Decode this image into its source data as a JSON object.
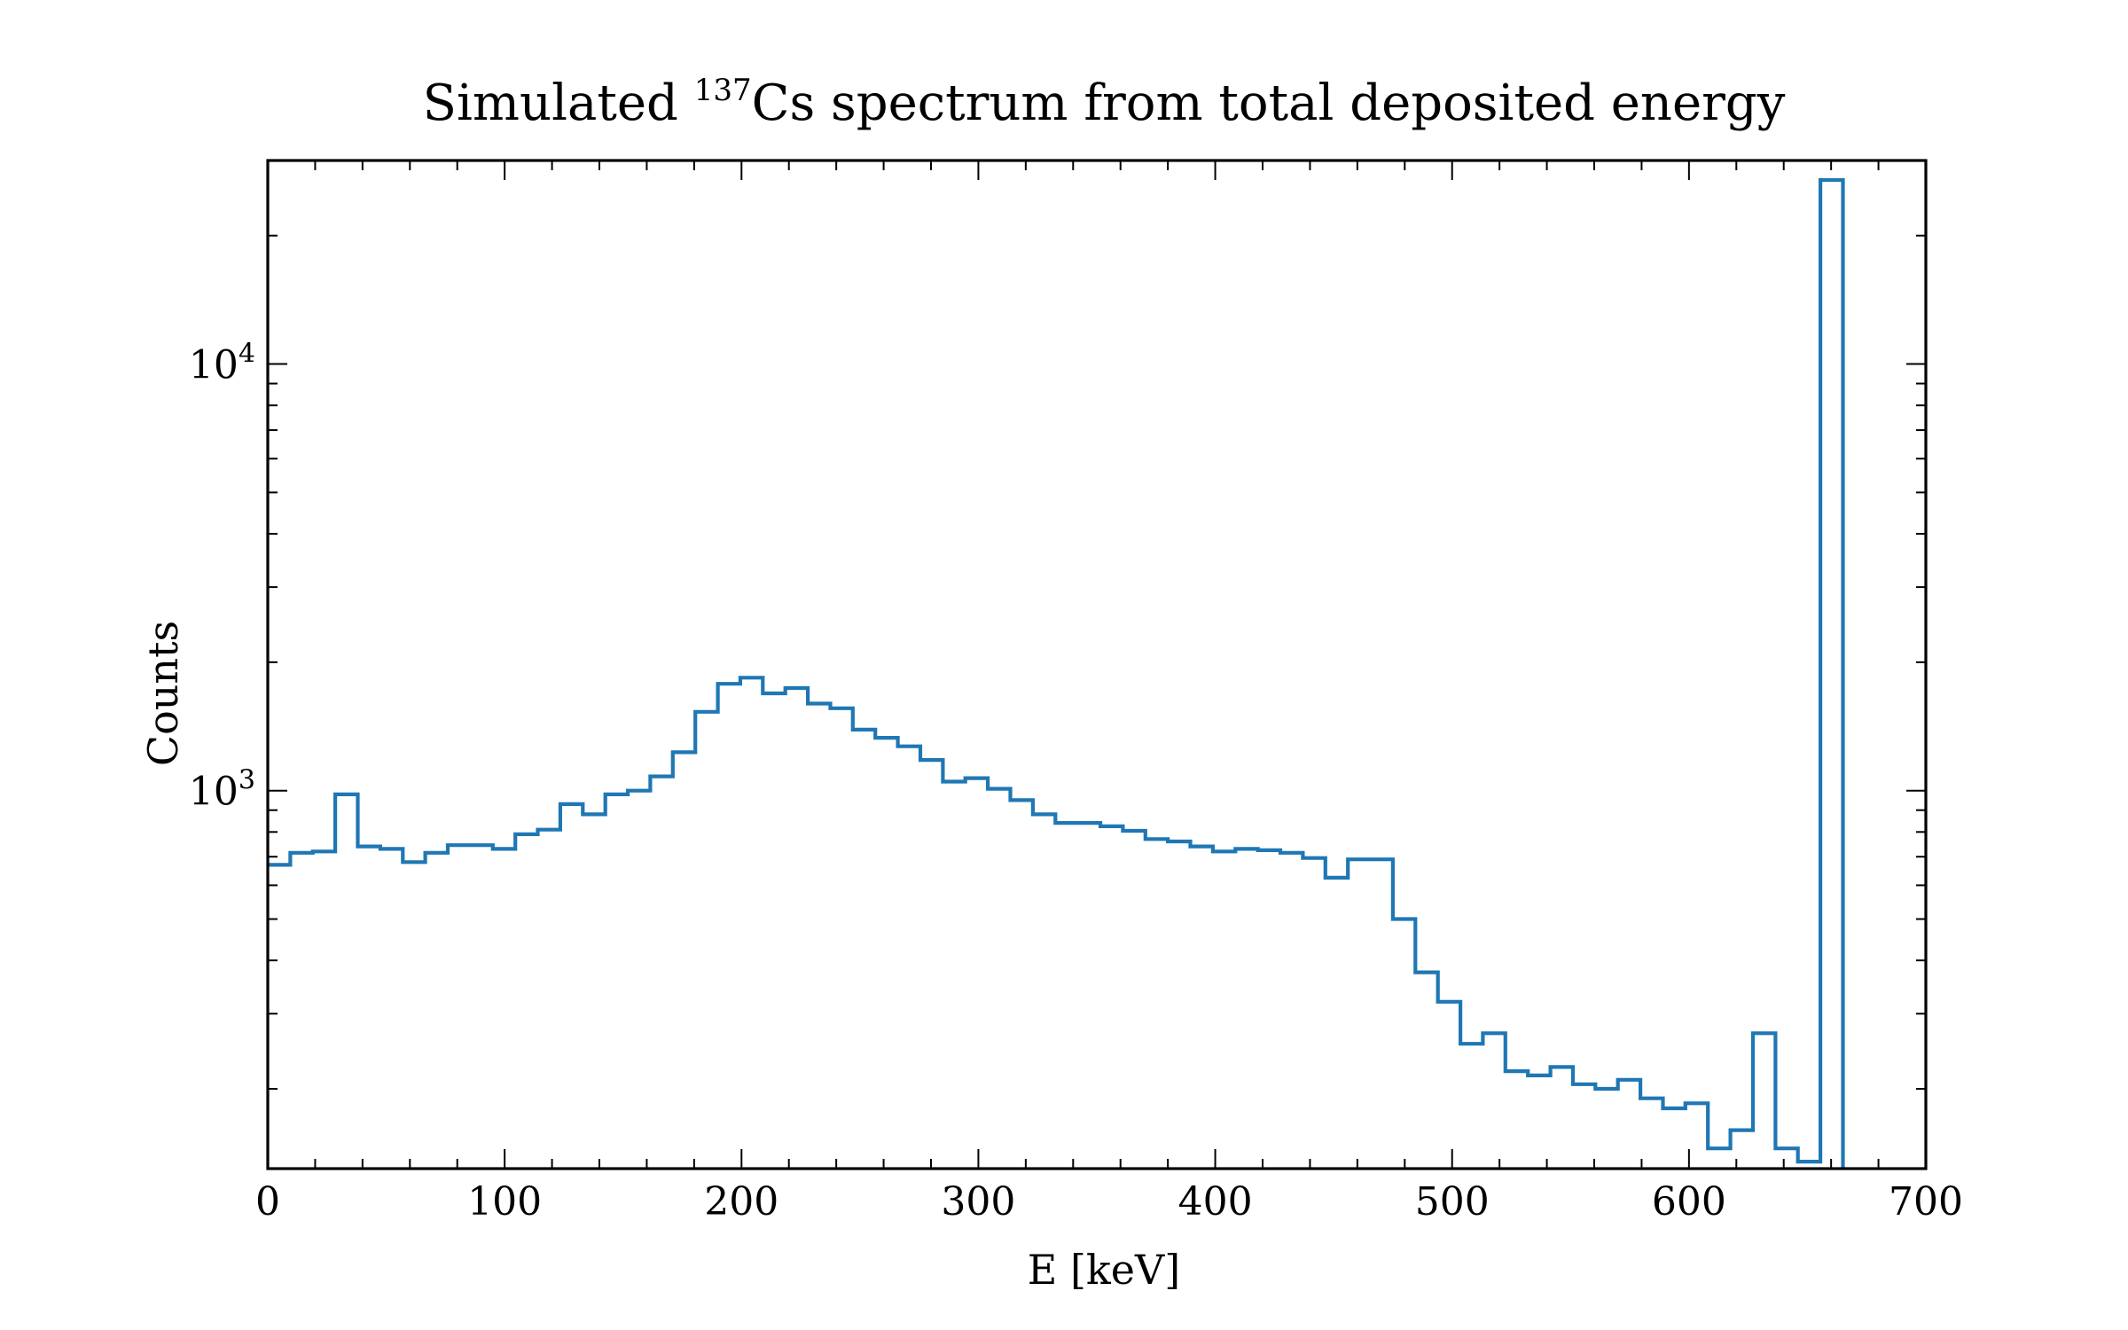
{
  "chart_data": {
    "type": "histogram-step",
    "title": {
      "prefix": "Simulated ",
      "superscript": "137",
      "suffix": "Cs spectrum from total deposited energy"
    },
    "xlabel": "E [keV]",
    "ylabel": "Counts",
    "x_scale": "linear",
    "y_scale": "log",
    "xlim": [
      0,
      700
    ],
    "ylim": [
      130,
      30000
    ],
    "x_ticks": [
      0,
      100,
      200,
      300,
      400,
      500,
      600,
      700
    ],
    "y_ticks": [
      {
        "value": 1000,
        "base": "10",
        "exp": "3"
      },
      {
        "value": 10000,
        "base": "10",
        "exp": "4"
      }
    ],
    "grid": false,
    "line_color": "#1f77b4",
    "series": [
      {
        "bin_width": 9.5,
        "bin_start": 0,
        "values": [
          670,
          715,
          720,
          980,
          740,
          730,
          680,
          715,
          745,
          745,
          730,
          790,
          810,
          930,
          880,
          980,
          1000,
          1080,
          1230,
          1530,
          1780,
          1840,
          1690,
          1740,
          1600,
          1560,
          1390,
          1330,
          1270,
          1180,
          1050,
          1070,
          1010,
          950,
          880,
          840,
          840,
          825,
          805,
          770,
          760,
          740,
          720,
          730,
          725,
          715,
          695,
          625,
          690,
          690,
          500,
          375,
          320,
          255,
          270,
          220,
          215,
          225,
          205,
          200,
          210,
          190,
          180,
          185,
          145,
          160,
          270,
          145,
          135,
          27000
        ]
      }
    ]
  }
}
